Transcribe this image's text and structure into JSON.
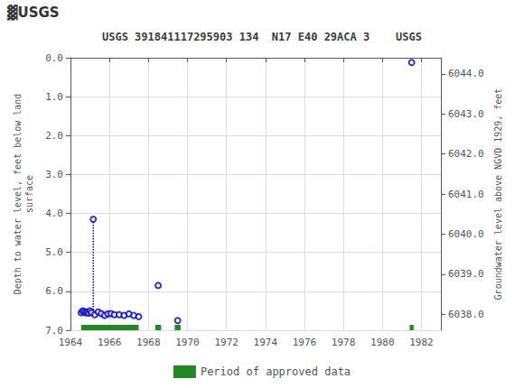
{
  "chart_data": {
    "type": "scatter",
    "title": "USGS 391841117295903 134  N17 E40 29ACA 3    USGS",
    "annotations": [
      {
        "text": "▓USGS"
      }
    ],
    "ylabel": "Depth to water level, feet below land\nsurface",
    "y2label": "Groundwater level above NGVD 1929, feet",
    "xlim": [
      1964,
      1983
    ],
    "xticks": [
      1964,
      1966,
      1968,
      1970,
      1972,
      1974,
      1976,
      1978,
      1980,
      1982
    ],
    "ylim": [
      7.0,
      0.0
    ],
    "yticks": [
      {
        "value": 0.0,
        "label": "0.0"
      },
      {
        "value": 1.0,
        "label": "1.0"
      },
      {
        "value": 2.0,
        "label": "2.0"
      },
      {
        "value": 3.0,
        "label": "3.0"
      },
      {
        "value": 4.0,
        "label": "4.0"
      },
      {
        "value": 5.0,
        "label": "5.0"
      },
      {
        "value": 6.0,
        "label": "6.0"
      },
      {
        "value": 7.0,
        "label": "7.0"
      }
    ],
    "y2lim": [
      6037.6,
      6044.4
    ],
    "y2ticks": [
      {
        "value": 6038.0,
        "label": "6038.0"
      },
      {
        "value": 6039.0,
        "label": "6039.0"
      },
      {
        "value": 6040.0,
        "label": "6040.0"
      },
      {
        "value": 6041.0,
        "label": "6041.0"
      },
      {
        "value": 6042.0,
        "label": "6042.0"
      },
      {
        "value": 6043.0,
        "label": "6043.0"
      },
      {
        "value": 6044.0,
        "label": "6044.0"
      }
    ],
    "grid": true,
    "legend": "bottom",
    "series": [
      {
        "type": "line",
        "line_style": "dotted",
        "color": "#0000bb",
        "x": [
          1965.17,
          1965.17
        ],
        "values": [
          4.15,
          6.6
        ]
      },
      {
        "type": "scatter",
        "marker": "open_circle",
        "color": "#0000bb",
        "x": [
          1964.55,
          1964.63,
          1964.7,
          1964.78,
          1964.85,
          1964.92,
          1965.0,
          1965.08,
          1965.17,
          1965.25,
          1965.42,
          1965.58,
          1965.75,
          1965.92,
          1966.08,
          1966.25,
          1966.5,
          1966.75,
          1967.0,
          1967.25,
          1967.5,
          1968.5,
          1969.5,
          1981.5
        ],
        "values": [
          6.55,
          6.5,
          6.52,
          6.55,
          6.53,
          6.56,
          6.5,
          6.55,
          4.15,
          6.6,
          6.53,
          6.57,
          6.62,
          6.58,
          6.57,
          6.6,
          6.6,
          6.62,
          6.58,
          6.62,
          6.65,
          5.85,
          6.75,
          0.12
        ]
      },
      {
        "type": "bar",
        "orientation": "horizontal",
        "name": "Period of approved data",
        "color": "#228822",
        "starts": [
          1964.55,
          1968.35,
          1969.35,
          1981.4
        ],
        "ends": [
          1967.5,
          1968.65,
          1969.65,
          1981.6
        ],
        "y": 6.93
      }
    ]
  }
}
